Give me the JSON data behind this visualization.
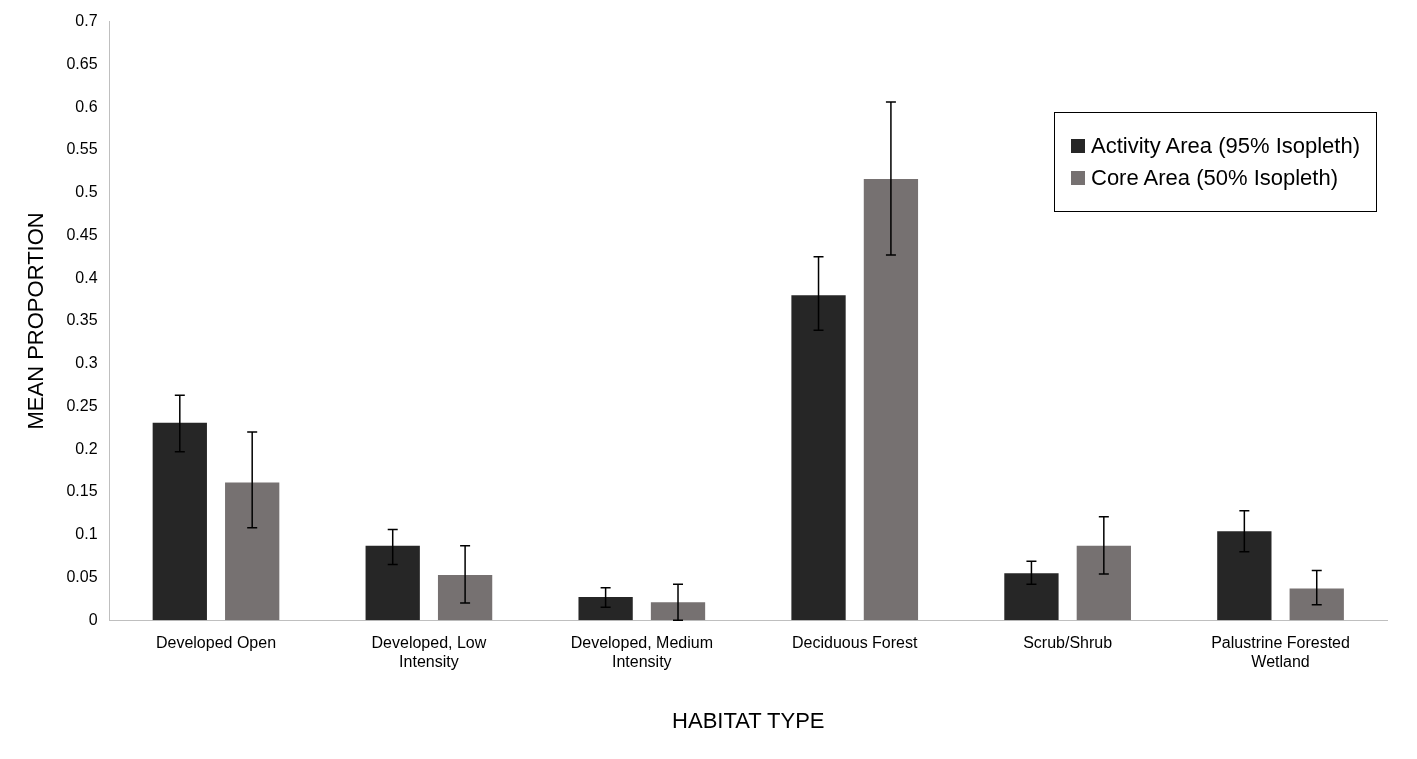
{
  "chart_data": {
    "type": "bar",
    "xlabel": "HABITAT TYPE",
    "ylabel": "MEAN PROPORTION",
    "categories": [
      "Developed Open",
      "Developed, Low Intensity",
      "Developed, Medium Intensity",
      "Deciduous Forest",
      "Scrub/Shrub",
      "Palustrine Forested Wetland"
    ],
    "series": [
      {
        "name": "Activity Area (95% Isopleth)",
        "color": "#262626",
        "values": [
          0.231,
          0.087,
          0.027,
          0.38,
          0.055,
          0.104
        ],
        "errors": [
          [
            0.197,
            0.263
          ],
          [
            0.065,
            0.106
          ],
          [
            0.015,
            0.038
          ],
          [
            0.339,
            0.425
          ],
          [
            0.042,
            0.069
          ],
          [
            0.08,
            0.128
          ]
        ]
      },
      {
        "name": "Core Area (50% Isopleth)",
        "color": "#767171",
        "values": [
          0.161,
          0.053,
          0.021,
          0.516,
          0.087,
          0.037
        ],
        "errors": [
          [
            0.108,
            0.22
          ],
          [
            0.02,
            0.087
          ],
          [
            0,
            0.042
          ],
          [
            0.427,
            0.606
          ],
          [
            0.054,
            0.121
          ],
          [
            0.018,
            0.058
          ]
        ]
      }
    ],
    "ylim": [
      0,
      0.7
    ],
    "yticks": [
      0,
      0.05,
      0.1,
      0.15,
      0.2,
      0.25,
      0.3,
      0.35,
      0.4,
      0.45,
      0.5,
      0.55,
      0.6,
      0.65,
      0.7
    ],
    "grid": false,
    "legend": "top right"
  }
}
